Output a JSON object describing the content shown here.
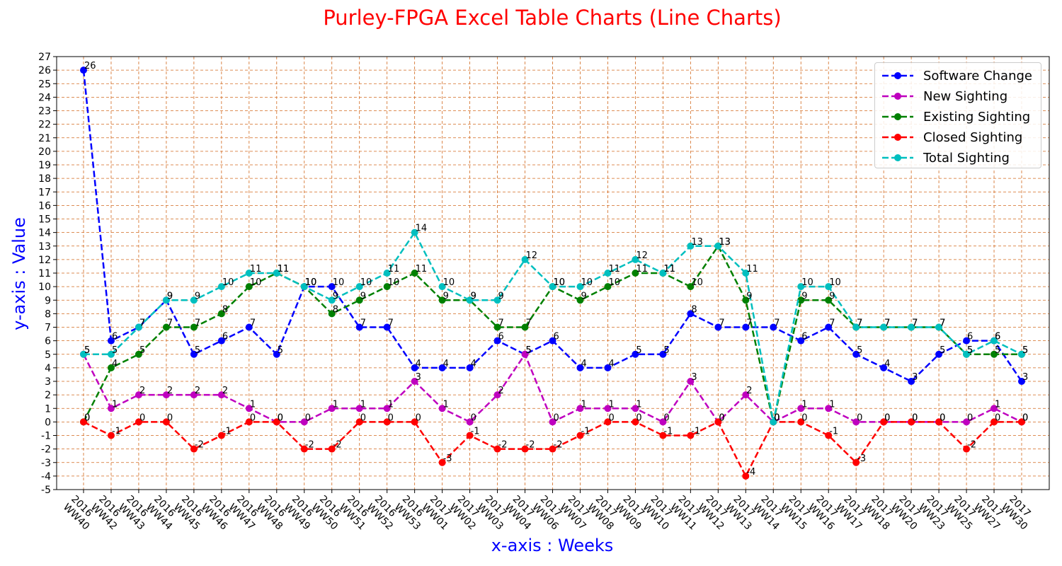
{
  "chart_data": {
    "type": "line",
    "title": "Purley-FPGA Excel Table Charts (Line Charts)",
    "xlabel": "x-axis : Weeks",
    "ylabel": "y-axis : Value",
    "ylim": [
      -5,
      27
    ],
    "grid": true,
    "legend_position": "top-right",
    "categories": [
      "2016 WW40",
      "2016 WW42",
      "2016 WW43",
      "2016 WW44",
      "2016 WW45",
      "2016 WW46",
      "2016 WW47",
      "2016 WW48",
      "2016 WW49",
      "2016 WW50",
      "2016 WW51",
      "2016 WW52",
      "2016 WW53",
      "2017 WW01",
      "2017 WW02",
      "2017 WW03",
      "2017 WW04",
      "2017 WW06",
      "2017 WW07",
      "2017 WW08",
      "2017 WW09",
      "2017 WW10",
      "2017 WW11",
      "2017 WW12",
      "2017 WW13",
      "2017 WW14",
      "2017 WW15",
      "2017 WW16",
      "2017 WW17",
      "2017 WW18",
      "2017 WW20",
      "2017 WW23",
      "2017 WW25",
      "2017 WW27",
      "2017 WW30"
    ],
    "series": [
      {
        "name": "Software Change",
        "color": "#0000ff",
        "values": [
          26,
          6,
          7,
          9,
          5,
          6,
          7,
          5,
          10,
          10,
          7,
          7,
          4,
          4,
          4,
          6,
          5,
          6,
          4,
          4,
          5,
          5,
          8,
          7,
          7,
          7,
          6,
          7,
          5,
          4,
          3,
          5,
          6,
          6,
          3
        ]
      },
      {
        "name": "New Sighting",
        "color": "#bf00bf",
        "values": [
          5,
          1,
          2,
          2,
          2,
          2,
          1,
          0,
          0,
          1,
          1,
          1,
          3,
          1,
          0,
          2,
          5,
          0,
          1,
          1,
          1,
          0,
          3,
          0,
          2,
          0,
          1,
          1,
          0,
          0,
          0,
          0,
          0,
          1,
          0
        ]
      },
      {
        "name": "Existing Sighting",
        "color": "#008000",
        "values": [
          0,
          4,
          5,
          7,
          7,
          8,
          10,
          11,
          10,
          8,
          9,
          10,
          11,
          9,
          9,
          7,
          7,
          10,
          9,
          10,
          11,
          11,
          10,
          13,
          9,
          0,
          9,
          9,
          7,
          7,
          7,
          7,
          5,
          5,
          5
        ]
      },
      {
        "name": "Closed Sighting",
        "color": "#ff0000",
        "values": [
          0,
          -1,
          0,
          0,
          -2,
          -1,
          0,
          0,
          -2,
          -2,
          0,
          0,
          0,
          -3,
          -1,
          -2,
          -2,
          -2,
          -1,
          0,
          0,
          -1,
          -1,
          0,
          -4,
          0,
          0,
          -1,
          -3,
          0,
          0,
          0,
          -2,
          0,
          0
        ]
      },
      {
        "name": "Total Sighting",
        "color": "#00bfbf",
        "values": [
          5,
          5,
          7,
          9,
          9,
          10,
          11,
          11,
          10,
          9,
          10,
          11,
          14,
          10,
          9,
          9,
          12,
          10,
          10,
          11,
          12,
          11,
          13,
          13,
          11,
          0,
          10,
          10,
          7,
          7,
          7,
          7,
          5,
          6,
          5
        ]
      }
    ]
  }
}
